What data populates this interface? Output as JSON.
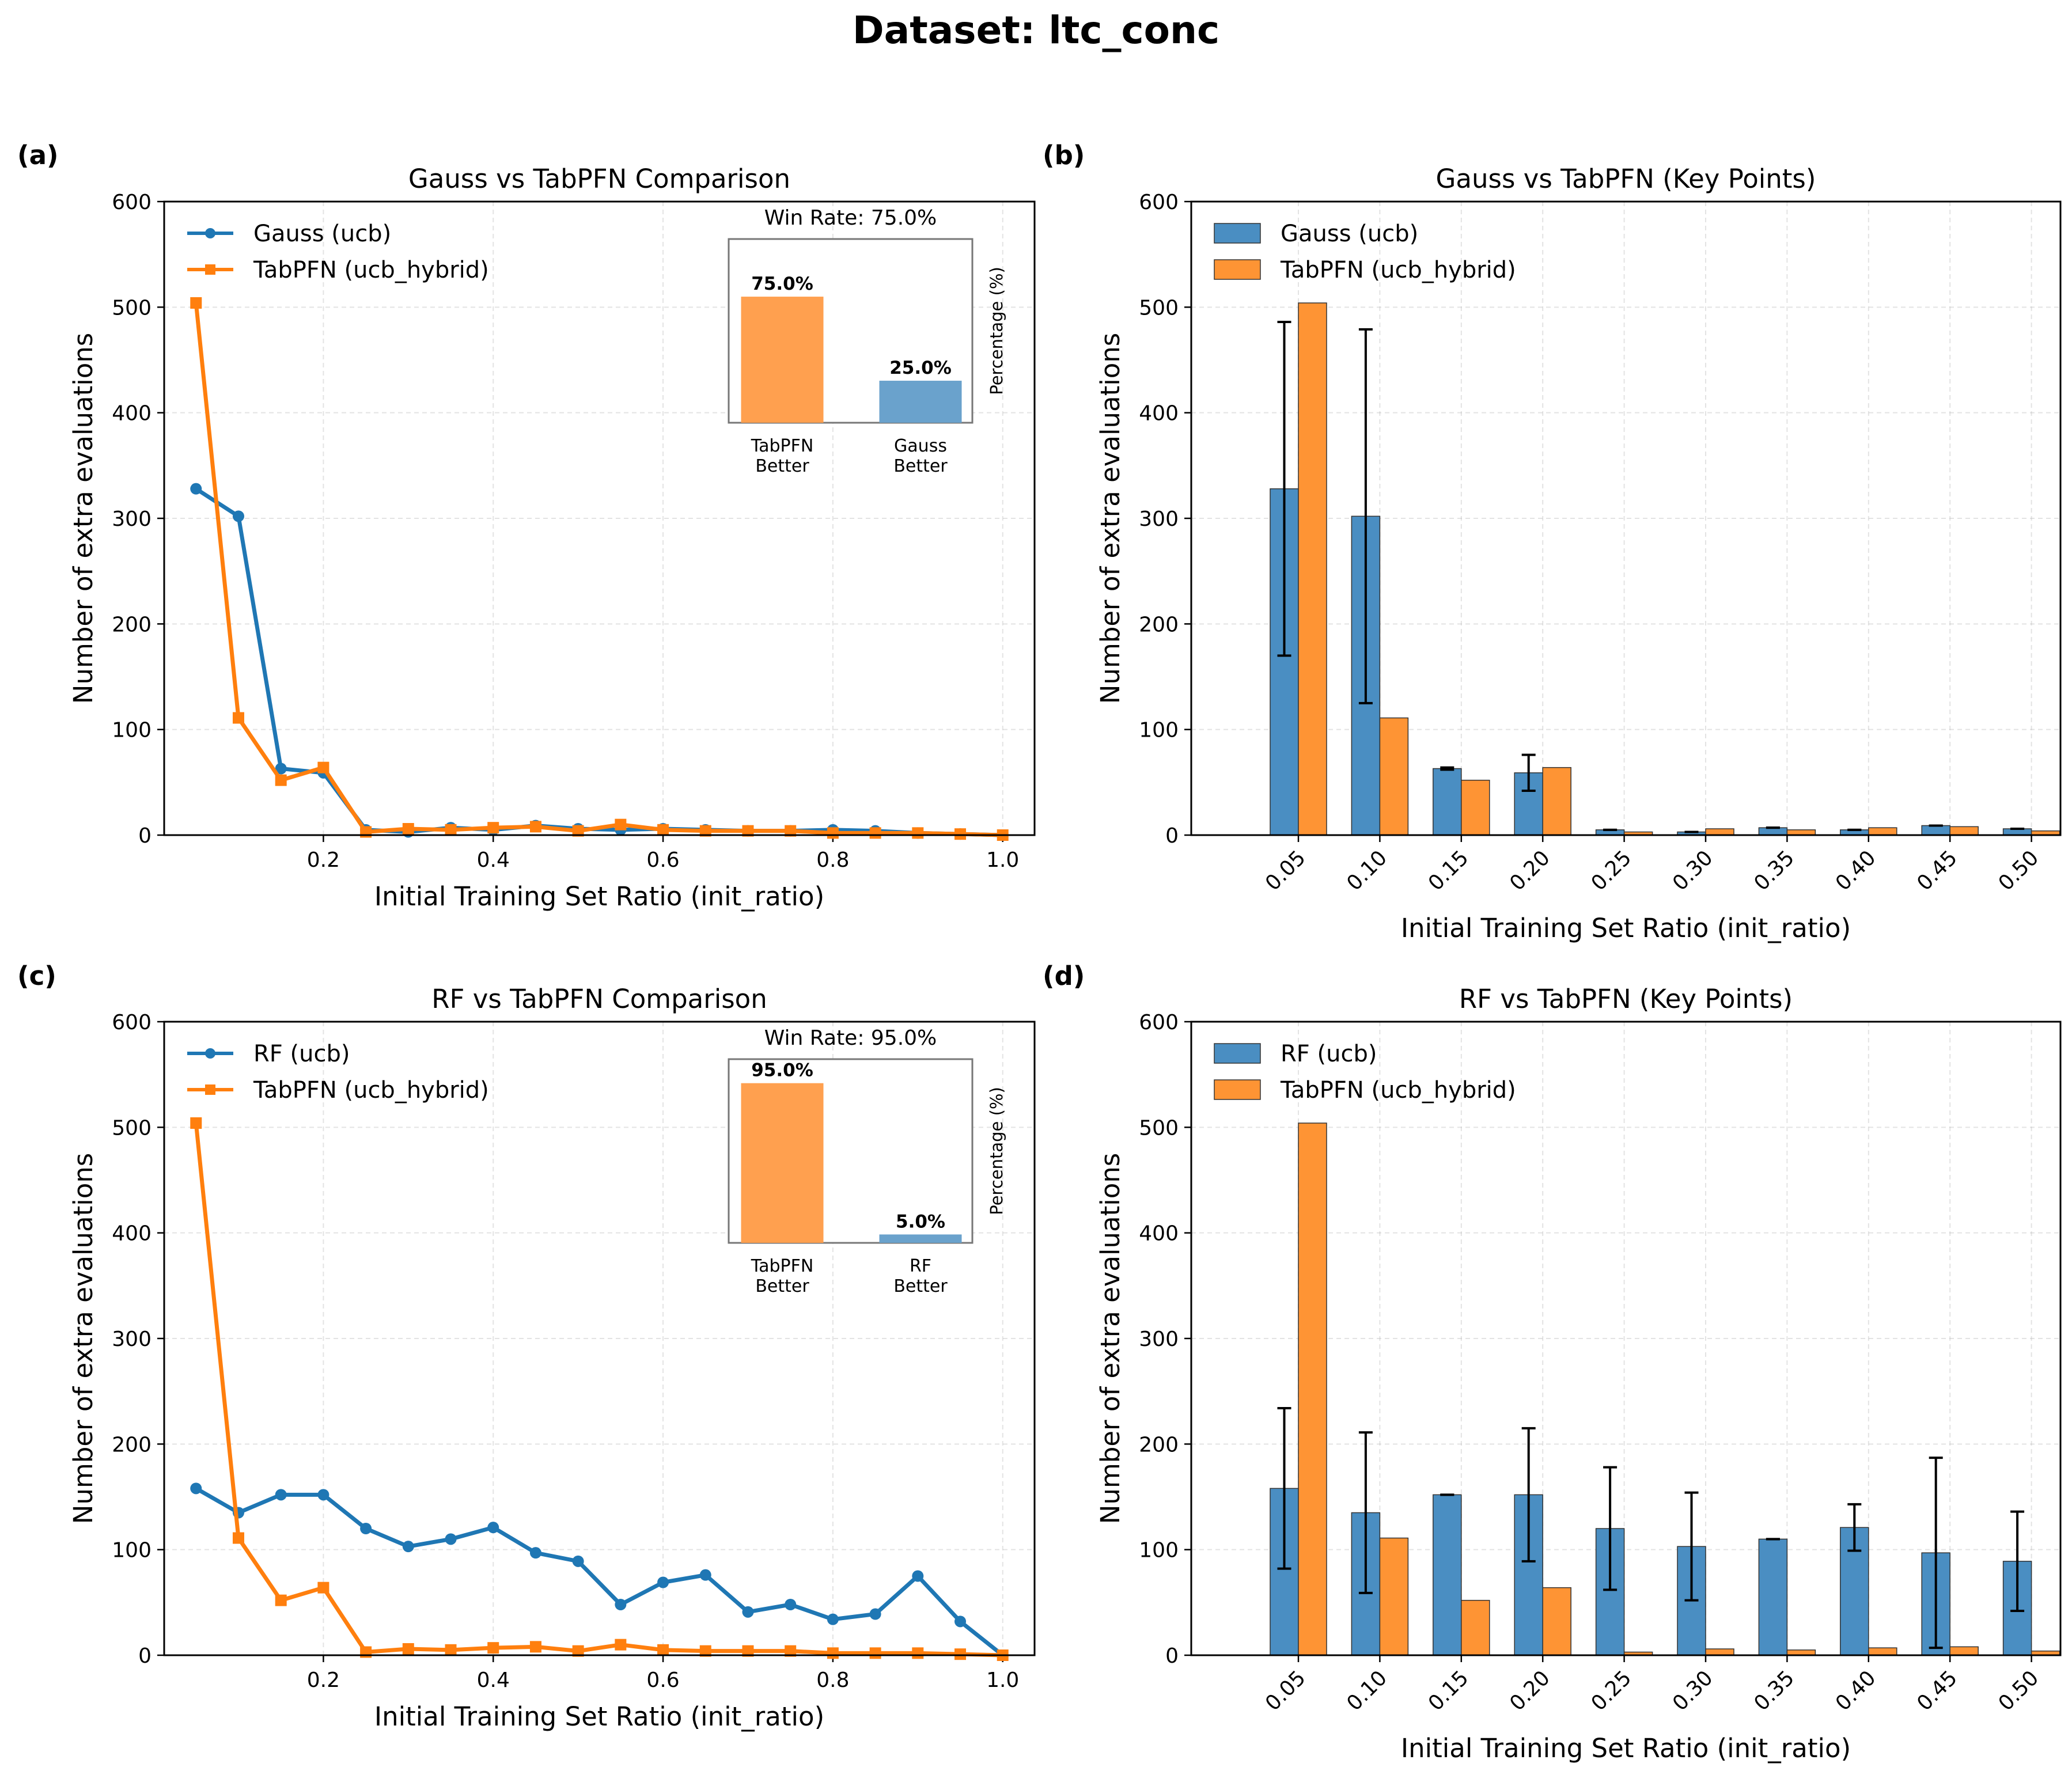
{
  "figure_title": "Dataset: ltc_conc",
  "colors": {
    "blue": "#1f77b4",
    "orange": "#ff7f0e",
    "bar_blue": "#4a8ec2",
    "bar_orange": "#fe9434"
  },
  "chart_data": [
    {
      "panel": "(a)",
      "type": "line",
      "title": "Gauss vs TabPFN Comparison",
      "xlabel": "Initial Training Set Ratio (init_ratio)",
      "ylabel": "Number of extra evaluations",
      "xlim": [
        0.0125,
        1.0375
      ],
      "ylim": [
        0,
        600
      ],
      "xticks": [
        0.2,
        0.4,
        0.6,
        0.8,
        1.0
      ],
      "xtick_labels": [
        "0.2",
        "0.4",
        "0.6",
        "0.8",
        "1.0"
      ],
      "yticks": [
        0,
        100,
        200,
        300,
        400,
        500,
        600
      ],
      "legend_position": "upper-left",
      "x": [
        0.05,
        0.1,
        0.15,
        0.2,
        0.25,
        0.3,
        0.35,
        0.4,
        0.45,
        0.5,
        0.55,
        0.6,
        0.65,
        0.7,
        0.75,
        0.8,
        0.85,
        0.9,
        0.95,
        1.0
      ],
      "series": [
        {
          "name": "Gauss (ucb)",
          "color": "#1f77b4",
          "marker": "circle",
          "values": [
            328,
            302,
            63,
            59,
            5,
            3,
            7,
            5,
            9,
            6,
            5,
            6,
            5,
            4,
            4,
            5,
            4,
            2,
            1,
            0
          ]
        },
        {
          "name": "TabPFN (ucb_hybrid)",
          "color": "#ff7f0e",
          "marker": "square",
          "values": [
            504,
            111,
            52,
            64,
            3,
            6,
            5,
            7,
            8,
            4,
            10,
            5,
            4,
            4,
            4,
            2,
            2,
            2,
            1,
            0
          ]
        }
      ],
      "inset": {
        "title": "Win Rate: 75.0%",
        "ylabel": "Percentage (%)",
        "categories": [
          "TabPFN\nBetter",
          "Gauss\nBetter"
        ],
        "values": [
          75.0,
          25.0
        ],
        "labels": [
          "75.0%",
          "25.0%"
        ],
        "colors": [
          "#ffa04f",
          "#6aa2cc"
        ]
      }
    },
    {
      "panel": "(b)",
      "type": "bar",
      "title": "Gauss vs TabPFN (Key Points)",
      "xlabel": "Initial Training Set Ratio (init_ratio)",
      "ylabel": "Number of extra evaluations",
      "ylim": [
        0,
        600
      ],
      "yticks": [
        0,
        100,
        200,
        300,
        400,
        500,
        600
      ],
      "legend_position": "upper-left",
      "categories": [
        "0.05",
        "0.10",
        "0.15",
        "0.20",
        "0.25",
        "0.30",
        "0.35",
        "0.40",
        "0.45",
        "0.50"
      ],
      "series": [
        {
          "name": "Gauss (ucb)",
          "color": "#4a8ec2",
          "values": [
            328,
            302,
            63,
            59,
            5,
            3,
            7,
            5,
            9,
            6
          ],
          "errors": [
            158,
            177,
            1,
            17,
            0,
            0,
            0,
            0,
            0,
            0
          ]
        },
        {
          "name": "TabPFN (ucb_hybrid)",
          "color": "#fe9434",
          "values": [
            504,
            111,
            52,
            64,
            3,
            6,
            5,
            7,
            8,
            4
          ]
        }
      ]
    },
    {
      "panel": "(c)",
      "type": "line",
      "title": "RF vs TabPFN Comparison",
      "xlabel": "Initial Training Set Ratio (init_ratio)",
      "ylabel": "Number of extra evaluations",
      "xlim": [
        0.0125,
        1.0375
      ],
      "ylim": [
        0,
        600
      ],
      "xticks": [
        0.2,
        0.4,
        0.6,
        0.8,
        1.0
      ],
      "xtick_labels": [
        "0.2",
        "0.4",
        "0.6",
        "0.8",
        "1.0"
      ],
      "yticks": [
        0,
        100,
        200,
        300,
        400,
        500,
        600
      ],
      "legend_position": "upper-left",
      "x": [
        0.05,
        0.1,
        0.15,
        0.2,
        0.25,
        0.3,
        0.35,
        0.4,
        0.45,
        0.5,
        0.55,
        0.6,
        0.65,
        0.7,
        0.75,
        0.8,
        0.85,
        0.9,
        0.95,
        1.0
      ],
      "series": [
        {
          "name": "RF (ucb)",
          "color": "#1f77b4",
          "marker": "circle",
          "values": [
            158,
            135,
            152,
            152,
            120,
            103,
            110,
            121,
            97,
            89,
            48,
            69,
            76,
            41,
            48,
            34,
            39,
            75,
            32,
            0
          ]
        },
        {
          "name": "TabPFN (ucb_hybrid)",
          "color": "#ff7f0e",
          "marker": "square",
          "values": [
            504,
            111,
            52,
            64,
            3,
            6,
            5,
            7,
            8,
            4,
            10,
            5,
            4,
            4,
            4,
            2,
            2,
            2,
            1,
            0
          ]
        }
      ],
      "inset": {
        "title": "Win Rate: 95.0%",
        "ylabel": "Percentage (%)",
        "categories": [
          "TabPFN\nBetter",
          "RF\nBetter"
        ],
        "values": [
          95.0,
          5.0
        ],
        "labels": [
          "95.0%",
          "5.0%"
        ],
        "colors": [
          "#ffa04f",
          "#6aa2cc"
        ]
      }
    },
    {
      "panel": "(d)",
      "type": "bar",
      "title": "RF vs TabPFN (Key Points)",
      "xlabel": "Initial Training Set Ratio (init_ratio)",
      "ylabel": "Number of extra evaluations",
      "ylim": [
        0,
        600
      ],
      "yticks": [
        0,
        100,
        200,
        300,
        400,
        500,
        600
      ],
      "legend_position": "upper-left",
      "categories": [
        "0.05",
        "0.10",
        "0.15",
        "0.20",
        "0.25",
        "0.30",
        "0.35",
        "0.40",
        "0.45",
        "0.50"
      ],
      "series": [
        {
          "name": "RF (ucb)",
          "color": "#4a8ec2",
          "values": [
            158,
            135,
            152,
            152,
            120,
            103,
            110,
            121,
            97,
            89
          ],
          "errors": [
            76,
            76,
            0,
            63,
            58,
            51,
            0,
            22,
            90,
            47
          ]
        },
        {
          "name": "TabPFN (ucb_hybrid)",
          "color": "#fe9434",
          "values": [
            504,
            111,
            52,
            64,
            3,
            6,
            5,
            7,
            8,
            4
          ]
        }
      ]
    }
  ]
}
